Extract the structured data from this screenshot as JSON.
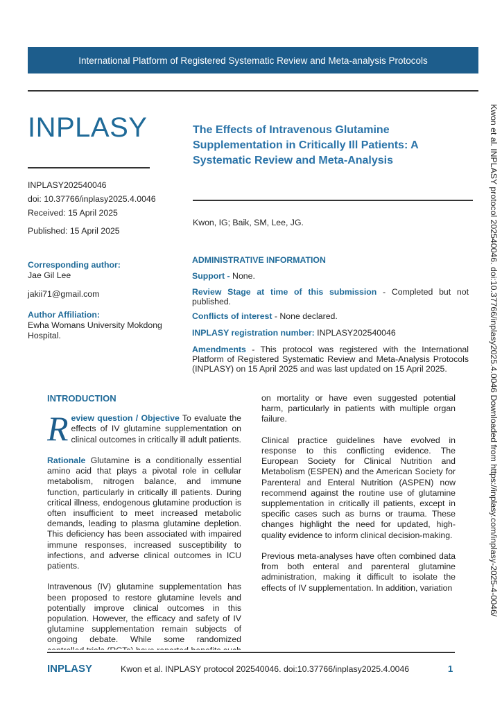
{
  "banner": "International Platform of Registered Systematic Review and Meta-analysis Protocols",
  "logo": "INPLASY",
  "meta": {
    "id": "INPLASY202540046",
    "doi": "doi: 10.37766/inplasy2025.4.0046",
    "received": "Received: 15 April 2025",
    "published": "Published: 15 April 2025"
  },
  "title": "The Effects of Intravenous Glutamine Supplementation in Critically Ill Patients: A Systematic Review and Meta-Analysis",
  "authors": "Kwon, IG; Baik, SM, Lee, JG.",
  "corresponding": {
    "label": "Corresponding author:",
    "name": "Jae Gil Lee",
    "email": "jakii71@gmail.com"
  },
  "affiliation": {
    "label": "Author Affiliation:",
    "value": "Ewha Womans University Mokdong Hospital."
  },
  "admin": {
    "heading": "ADMINISTRATIVE INFORMATION",
    "support_label": "Support -",
    "support": " None.",
    "stage_label": "Review Stage at time of this submission",
    "stage": " - Completed but not published.",
    "conflicts_label": "Conflicts of interest",
    "conflicts": " - None declared.",
    "reg_label": "INPLASY registration number:",
    "reg": " INPLASY202540046",
    "amend_label": "Amendments",
    "amend": " - This protocol was registered with the International Platform of Registered Systematic Review and Meta-Analysis Protocols (INPLASY) on 15 April 2025 and was last updated on 15 April 2025."
  },
  "intro": {
    "heading": "INTRODUCTION",
    "dropcap": "R",
    "objective_label": "eview question / Objective",
    "objective": " To evaluate the effects of IV glutamine supplementation on clinical outcomes in critically ill adult patients.",
    "rationale_label": "Rationale",
    "rationale": " Glutamine is a conditionally essential amino acid that plays a pivotal role in cellular metabolism, nitrogen balance, and immune function, particularly in critically ill patients. During critical illness, endogenous glutamine production is often insufficient to meet increased metabolic demands, leading to plasma glutamine depletion. This deficiency has been associated with impaired immune responses, increased susceptibility to infections, and adverse clinical outcomes in ICU patients.",
    "p3": "Intravenous (IV) glutamine supplementation has been proposed to restore glutamine levels and potentially improve clinical outcomes in this population. However, the efficacy and safety of IV glutamine supplementation remain subjects of ongoing debate. While some randomized controlled trials (RCTs) have reported benefits such as reduced infection rates, decreased pneumonia incidence, or shortened duration of mechanical ventilation, others have found no significant impact on mortality or have even suggested potential harm, particularly in patients with multiple organ failure.",
    "p4": "Clinical practice guidelines have evolved in response to this conflicting evidence. The European Society for Clinical Nutrition and Metabolism (ESPEN) and the American Society for Parenteral and Enteral Nutrition (ASPEN) now recommend against the routine use of glutamine supplementation in critically ill patients, except in specific cases such as burns or trauma. These changes highlight the need for updated, high-quality evidence to inform clinical decision-making.",
    "p5": "Previous meta-analyses have often combined data from both enteral and parenteral glutamine administration, making it difficult to isolate the effects of IV supplementation. In addition, variation"
  },
  "vertical": "Kwon et al. INPLASY protocol 202540046. doi:10.37766/inplasy2025.4.0046 Downloaded from https://inplasy.com/inplasy-2025-4-0046/",
  "footer": {
    "brand": "INPLASY",
    "citation": "Kwon et al. INPLASY protocol 202540046. doi:10.37766/inplasy2025.4.0046",
    "page": "1"
  }
}
